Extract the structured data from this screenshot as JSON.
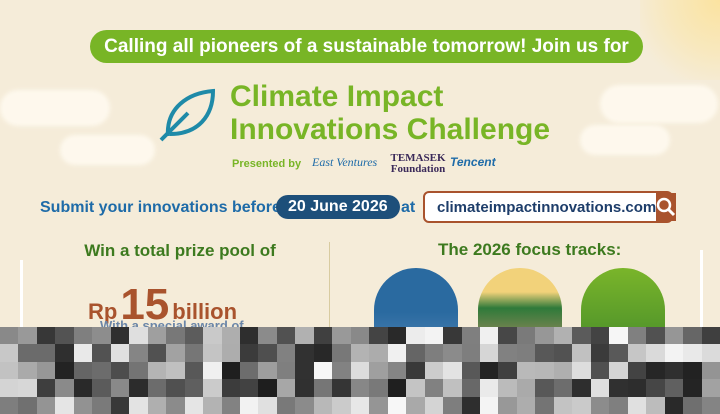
{
  "banner": "Calling all pioneers of a sustainable tomorrow! Join us for",
  "title": {
    "line1": "Climate Impact",
    "line2": "Innovations Challenge"
  },
  "presented_by": {
    "label": "Presented by",
    "sponsors": [
      "East Ventures",
      "TEMASEK Foundation",
      "Tencent"
    ]
  },
  "deadline": {
    "label": "Submit your innovations before",
    "date": "20 June 2026",
    "at": "at"
  },
  "website": {
    "url": "climateimpactinnovations.com",
    "icon": "search-icon"
  },
  "prize": {
    "heading": "Win a total prize pool of",
    "currency": "Rp",
    "amount": "15",
    "unit": "billion",
    "special": "With a special award of"
  },
  "tracks": {
    "heading": "The 2026 focus tracks:",
    "icons": [
      "energy-track-icon",
      "nature-track-icon",
      "waste-track-icon"
    ]
  },
  "colors": {
    "green": "#78b526",
    "dark_green": "#3d7a1f",
    "navy": "#1d4f7a",
    "brown": "#a9532d",
    "background": "#f5ecd9"
  }
}
